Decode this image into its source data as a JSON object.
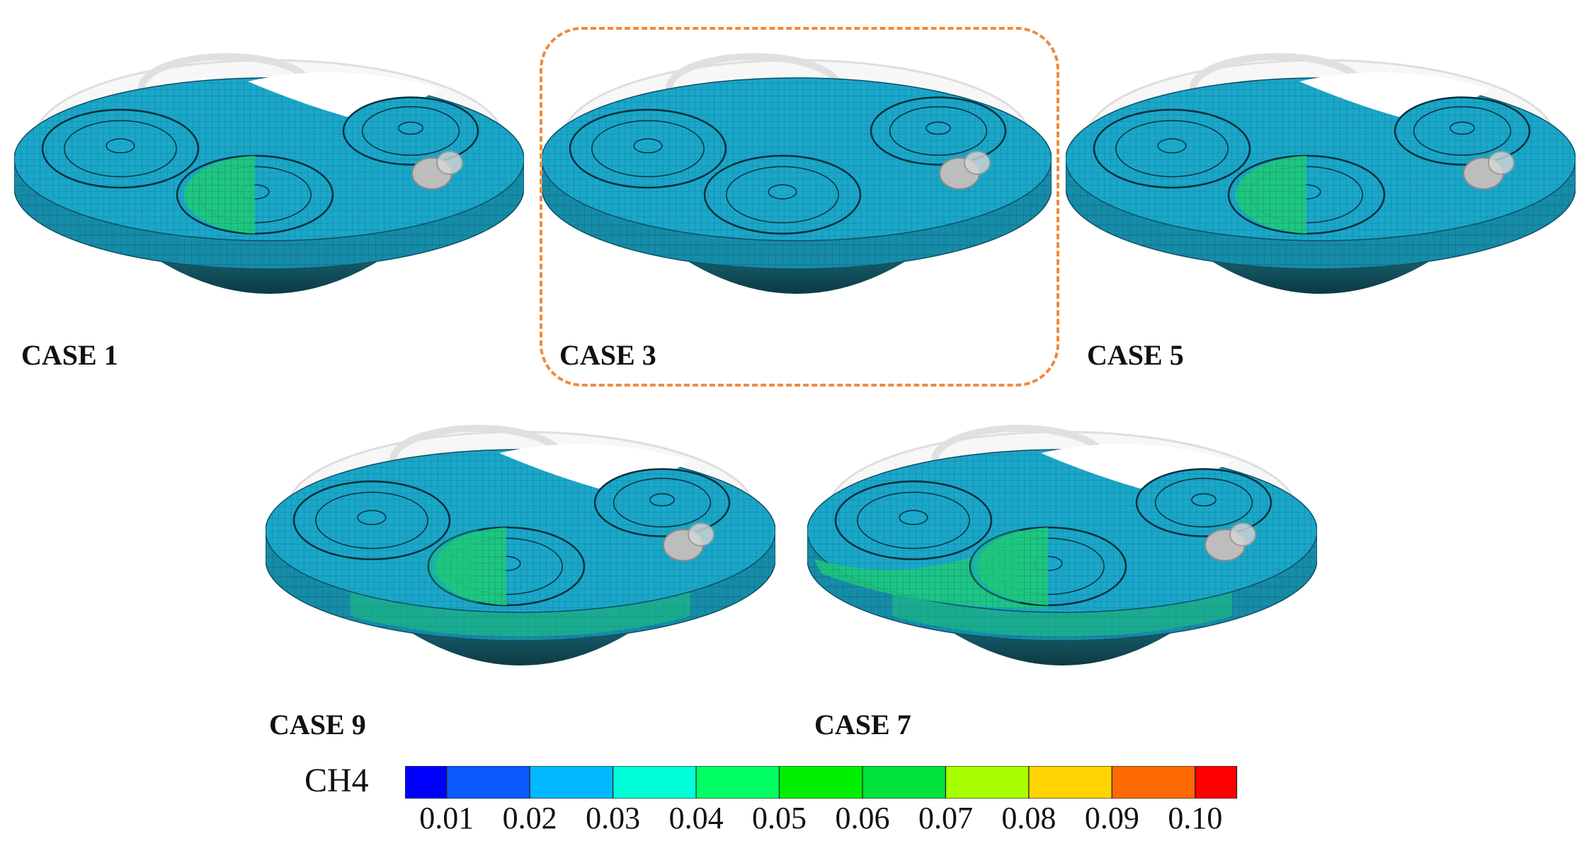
{
  "cases": [
    {
      "label": "CASE 1",
      "green_extent": 1,
      "highlighted": false
    },
    {
      "label": "CASE 3",
      "green_extent": 0,
      "highlighted": true
    },
    {
      "label": "CASE 5",
      "green_extent": 1,
      "highlighted": false
    },
    {
      "label": "CASE 9",
      "green_extent": 2,
      "highlighted": false
    },
    {
      "label": "CASE 7",
      "green_extent": 3,
      "highlighted": false
    }
  ],
  "legend": {
    "title": "CH4",
    "ticks": [
      "0.01",
      "0.02",
      "0.03",
      "0.04",
      "0.05",
      "0.06",
      "0.07",
      "0.08",
      "0.09",
      "0.10"
    ],
    "colors": [
      "#0000ff",
      "#0a5aff",
      "#00b8ff",
      "#00ffd8",
      "#00ff64",
      "#00f000",
      "#00e23a",
      "#a8ff00",
      "#ffd400",
      "#ff6a00",
      "#ff0000"
    ]
  },
  "colors": {
    "mesh_cyan": "#1aa7c9",
    "mesh_line": "#0d4f66",
    "mesh_green": "#1ec97a",
    "bowl_dark": "#0b3a44",
    "highlight": "#f08a3c"
  }
}
